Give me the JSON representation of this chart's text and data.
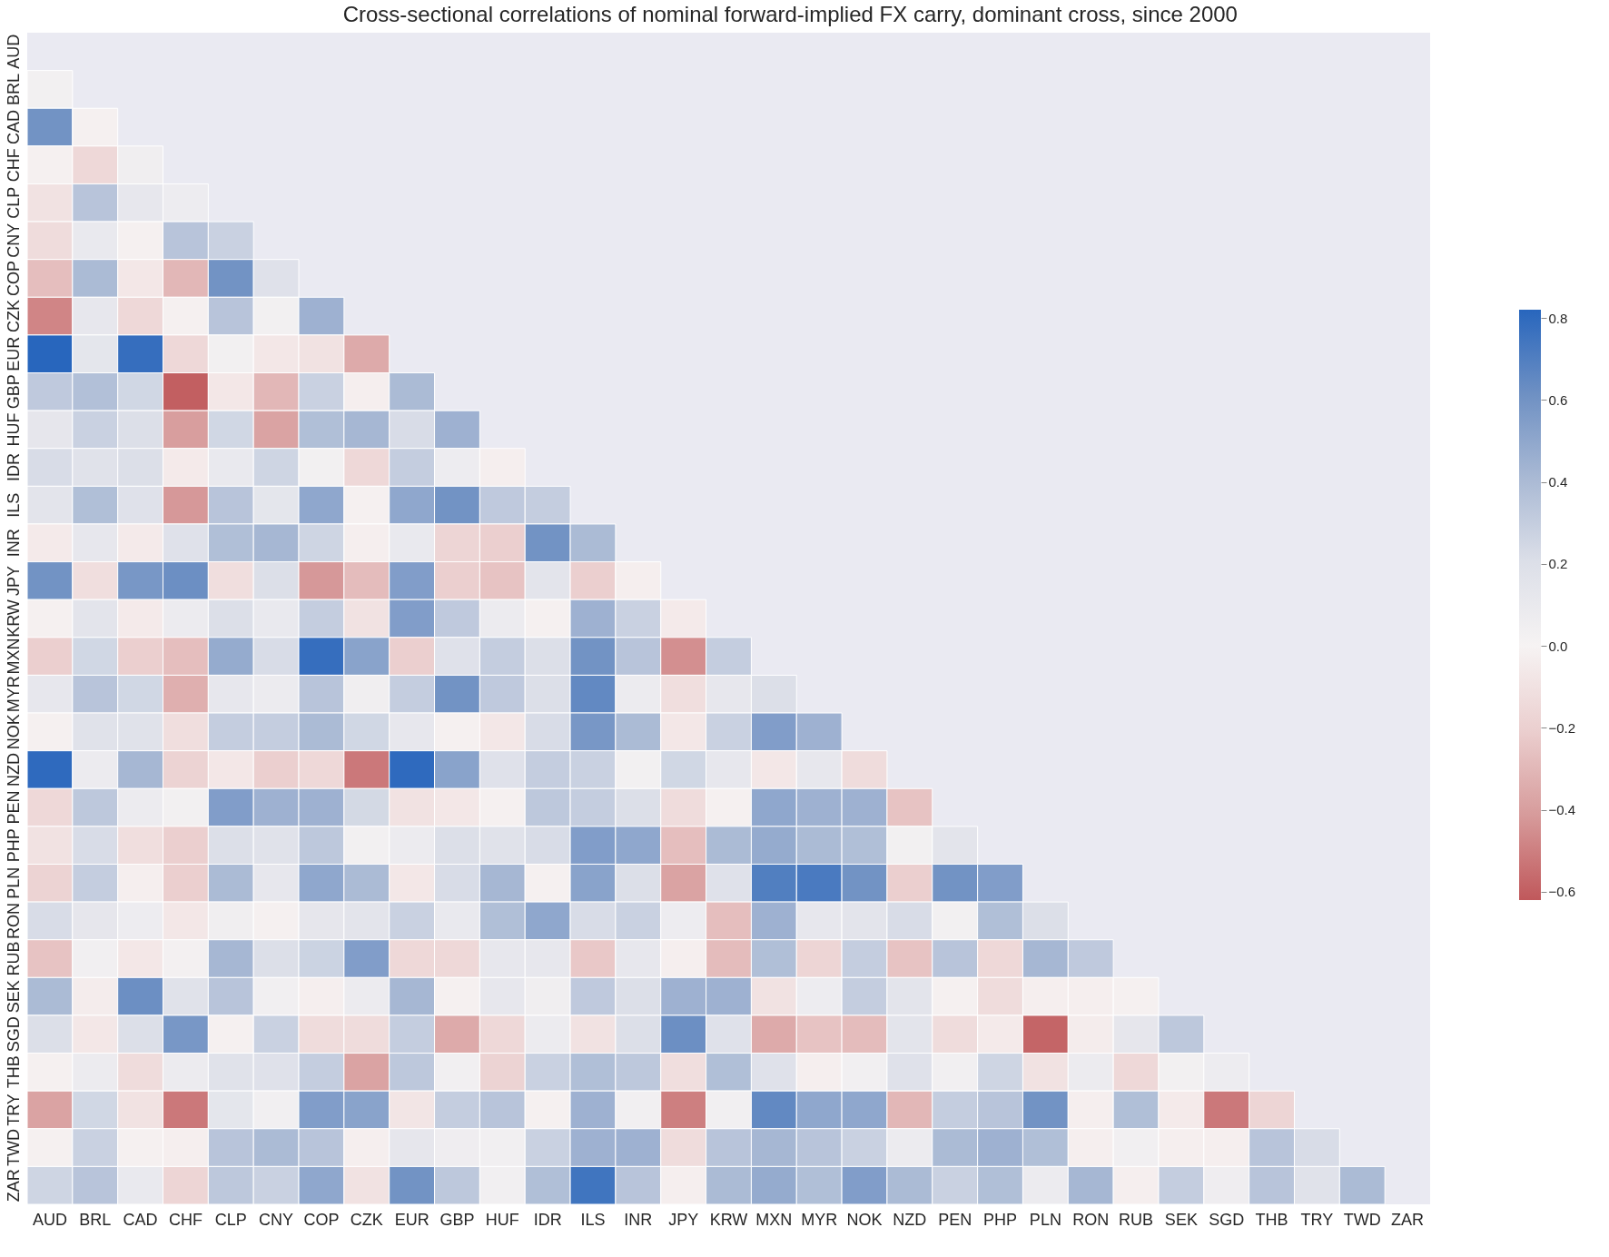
{
  "chart_data": {
    "type": "heatmap",
    "title": "Cross-sectional correlations of nominal forward-implied FX carry, dominant cross, since 2000",
    "categories": [
      "AUD",
      "BRL",
      "CAD",
      "CHF",
      "CLP",
      "CNY",
      "COP",
      "CZK",
      "EUR",
      "GBP",
      "HUF",
      "IDR",
      "ILS",
      "INR",
      "JPY",
      "KRW",
      "MXN",
      "MYR",
      "NOK",
      "NZD",
      "PEN",
      "PHP",
      "PLN",
      "RON",
      "RUB",
      "SEK",
      "SGD",
      "THB",
      "TRY",
      "TWD",
      "ZAR"
    ],
    "y_categories": [
      "AUD",
      "BRL",
      "CAD",
      "CHF",
      "CLP",
      "CNY",
      "COP",
      "CZK",
      "EUR",
      "GBP",
      "HUF",
      "IDR",
      "ILS",
      "INR",
      "JPY",
      "KRW",
      "MXN",
      "MYR",
      "NOK",
      "NZD",
      "PEN",
      "PHP",
      "PLN",
      "RON",
      "RUB",
      "SEK",
      "SGD",
      "THB",
      "TRY",
      "TWD",
      "ZAR"
    ],
    "clim": [
      -0.62,
      0.82
    ],
    "cticks": [
      -0.6,
      -0.4,
      -0.2,
      {
        "value": 0,
        "label": "0.0"
      },
      0.2,
      0.4,
      0.6,
      0.8
    ],
    "cells": [
      [
        null,
        null,
        null,
        null,
        null,
        null,
        null,
        null,
        null,
        null,
        null,
        null,
        null,
        null,
        null,
        null,
        null,
        null,
        null,
        null,
        null,
        null,
        null,
        null,
        null,
        null,
        null,
        null,
        null,
        null,
        null
      ],
      [
        0.03,
        null,
        null,
        null,
        null,
        null,
        null,
        null,
        null,
        null,
        null,
        null,
        null,
        null,
        null,
        null,
        null,
        null,
        null,
        null,
        null,
        null,
        null,
        null,
        null,
        null,
        null,
        null,
        null,
        null,
        null
      ],
      [
        0.6,
        -0.02,
        null,
        null,
        null,
        null,
        null,
        null,
        null,
        null,
        null,
        null,
        null,
        null,
        null,
        null,
        null,
        null,
        null,
        null,
        null,
        null,
        null,
        null,
        null,
        null,
        null,
        null,
        null,
        null,
        null
      ],
      [
        -0.02,
        -0.15,
        0.05,
        null,
        null,
        null,
        null,
        null,
        null,
        null,
        null,
        null,
        null,
        null,
        null,
        null,
        null,
        null,
        null,
        null,
        null,
        null,
        null,
        null,
        null,
        null,
        null,
        null,
        null,
        null,
        null
      ],
      [
        -0.1,
        0.35,
        0.12,
        0.07,
        null,
        null,
        null,
        null,
        null,
        null,
        null,
        null,
        null,
        null,
        null,
        null,
        null,
        null,
        null,
        null,
        null,
        null,
        null,
        null,
        null,
        null,
        null,
        null,
        null,
        null,
        null
      ],
      [
        -0.13,
        0.1,
        -0.02,
        0.35,
        0.28,
        null,
        null,
        null,
        null,
        null,
        null,
        null,
        null,
        null,
        null,
        null,
        null,
        null,
        null,
        null,
        null,
        null,
        null,
        null,
        null,
        null,
        null,
        null,
        null,
        null,
        null
      ],
      [
        -0.27,
        0.4,
        -0.07,
        -0.3,
        0.6,
        0.18,
        null,
        null,
        null,
        null,
        null,
        null,
        null,
        null,
        null,
        null,
        null,
        null,
        null,
        null,
        null,
        null,
        null,
        null,
        null,
        null,
        null,
        null,
        null,
        null,
        null
      ],
      [
        -0.48,
        0.12,
        -0.15,
        -0.02,
        0.35,
        0.03,
        0.45,
        null,
        null,
        null,
        null,
        null,
        null,
        null,
        null,
        null,
        null,
        null,
        null,
        null,
        null,
        null,
        null,
        null,
        null,
        null,
        null,
        null,
        null,
        null,
        null
      ],
      [
        0.82,
        0.14,
        0.78,
        -0.15,
        0.03,
        -0.07,
        -0.1,
        -0.35,
        null,
        null,
        null,
        null,
        null,
        null,
        null,
        null,
        null,
        null,
        null,
        null,
        null,
        null,
        null,
        null,
        null,
        null,
        null,
        null,
        null,
        null,
        null
      ],
      [
        0.32,
        0.37,
        0.25,
        -0.6,
        -0.07,
        -0.3,
        0.28,
        -0.03,
        0.4,
        null,
        null,
        null,
        null,
        null,
        null,
        null,
        null,
        null,
        null,
        null,
        null,
        null,
        null,
        null,
        null,
        null,
        null,
        null,
        null,
        null,
        null
      ],
      [
        0.13,
        0.28,
        0.2,
        -0.4,
        0.25,
        -0.38,
        0.38,
        0.42,
        0.22,
        0.45,
        null,
        null,
        null,
        null,
        null,
        null,
        null,
        null,
        null,
        null,
        null,
        null,
        null,
        null,
        null,
        null,
        null,
        null,
        null,
        null,
        null
      ],
      [
        0.22,
        0.17,
        0.2,
        -0.05,
        0.1,
        0.26,
        0.03,
        -0.15,
        0.3,
        0.07,
        -0.03,
        null,
        null,
        null,
        null,
        null,
        null,
        null,
        null,
        null,
        null,
        null,
        null,
        null,
        null,
        null,
        null,
        null,
        null,
        null,
        null
      ],
      [
        0.15,
        0.38,
        0.18,
        -0.42,
        0.35,
        0.14,
        0.5,
        -0.02,
        0.5,
        0.6,
        0.32,
        0.3,
        null,
        null,
        null,
        null,
        null,
        null,
        null,
        null,
        null,
        null,
        null,
        null,
        null,
        null,
        null,
        null,
        null,
        null,
        null
      ],
      [
        -0.05,
        0.12,
        -0.05,
        0.18,
        0.38,
        0.42,
        0.26,
        -0.03,
        0.1,
        -0.17,
        -0.2,
        0.6,
        0.4,
        null,
        null,
        null,
        null,
        null,
        null,
        null,
        null,
        null,
        null,
        null,
        null,
        null,
        null,
        null,
        null,
        null,
        null
      ],
      [
        0.6,
        -0.12,
        0.58,
        0.62,
        -0.12,
        0.2,
        -0.42,
        -0.28,
        0.55,
        -0.2,
        -0.25,
        0.15,
        -0.2,
        -0.03,
        null,
        null,
        null,
        null,
        null,
        null,
        null,
        null,
        null,
        null,
        null,
        null,
        null,
        null,
        null,
        null,
        null
      ],
      [
        -0.02,
        0.15,
        -0.05,
        0.08,
        0.2,
        0.1,
        0.3,
        -0.1,
        0.55,
        0.32,
        0.08,
        -0.02,
        0.45,
        0.28,
        -0.05,
        null,
        null,
        null,
        null,
        null,
        null,
        null,
        null,
        null,
        null,
        null,
        null,
        null,
        null,
        null,
        null
      ],
      [
        -0.2,
        0.25,
        -0.2,
        -0.27,
        0.48,
        0.22,
        0.78,
        0.52,
        -0.2,
        0.18,
        0.3,
        0.2,
        0.6,
        0.35,
        -0.45,
        0.3,
        null,
        null,
        null,
        null,
        null,
        null,
        null,
        null,
        null,
        null,
        null,
        null,
        null,
        null,
        null
      ],
      [
        0.12,
        0.35,
        0.25,
        -0.33,
        0.12,
        0.08,
        0.35,
        0.05,
        0.3,
        0.6,
        0.32,
        0.2,
        0.65,
        0.08,
        -0.12,
        0.12,
        0.2,
        null,
        null,
        null,
        null,
        null,
        null,
        null,
        null,
        null,
        null,
        null,
        null,
        null,
        null
      ],
      [
        -0.02,
        0.17,
        0.17,
        -0.12,
        0.3,
        0.3,
        0.4,
        0.25,
        0.12,
        -0.02,
        -0.07,
        0.22,
        0.58,
        0.4,
        -0.07,
        0.28,
        0.55,
        0.45,
        null,
        null,
        null,
        null,
        null,
        null,
        null,
        null,
        null,
        null,
        null,
        null,
        null
      ],
      [
        0.8,
        0.08,
        0.42,
        -0.18,
        -0.07,
        -0.2,
        -0.15,
        -0.52,
        0.8,
        0.52,
        0.18,
        0.3,
        0.28,
        0.03,
        0.25,
        0.12,
        -0.07,
        0.12,
        -0.13,
        null,
        null,
        null,
        null,
        null,
        null,
        null,
        null,
        null,
        null,
        null,
        null
      ],
      [
        -0.15,
        0.33,
        0.08,
        0.03,
        0.55,
        0.45,
        0.45,
        0.24,
        -0.1,
        -0.07,
        -0.02,
        0.33,
        0.3,
        0.2,
        -0.13,
        -0.02,
        0.5,
        0.45,
        0.45,
        -0.25,
        null,
        null,
        null,
        null,
        null,
        null,
        null,
        null,
        null,
        null,
        null
      ],
      [
        -0.1,
        0.22,
        -0.12,
        -0.2,
        0.2,
        0.17,
        0.33,
        0.03,
        0.08,
        0.2,
        0.17,
        0.22,
        0.55,
        0.5,
        -0.27,
        0.4,
        0.48,
        0.4,
        0.38,
        0.03,
        0.15,
        null,
        null,
        null,
        null,
        null,
        null,
        null,
        null,
        null,
        null
      ],
      [
        -0.18,
        0.3,
        -0.03,
        -0.2,
        0.4,
        0.12,
        0.5,
        0.4,
        -0.07,
        0.22,
        0.42,
        -0.02,
        0.52,
        0.2,
        -0.38,
        0.18,
        0.7,
        0.72,
        0.6,
        -0.2,
        0.6,
        0.55,
        null,
        null,
        null,
        null,
        null,
        null,
        null,
        null,
        null
      ],
      [
        0.22,
        0.13,
        0.07,
        -0.07,
        0.05,
        -0.02,
        0.13,
        0.15,
        0.28,
        0.1,
        0.38,
        0.5,
        0.22,
        0.28,
        0.07,
        -0.27,
        0.45,
        0.12,
        0.15,
        0.22,
        0.03,
        0.38,
        0.2,
        null,
        null,
        null,
        null,
        null,
        null,
        null,
        null
      ],
      [
        -0.25,
        0.04,
        -0.07,
        0.02,
        0.42,
        0.2,
        0.27,
        0.55,
        -0.15,
        -0.15,
        0.12,
        0.12,
        -0.23,
        0.12,
        -0.03,
        -0.28,
        0.38,
        -0.17,
        0.3,
        -0.25,
        0.35,
        -0.15,
        0.42,
        0.32,
        null,
        null,
        null,
        null,
        null,
        null,
        null
      ],
      [
        0.4,
        -0.04,
        0.62,
        0.17,
        0.35,
        0.04,
        -0.03,
        0.08,
        0.42,
        -0.02,
        0.12,
        0.05,
        0.32,
        0.2,
        0.45,
        0.45,
        -0.1,
        0.07,
        0.3,
        0.15,
        -0.02,
        -0.13,
        -0.03,
        -0.03,
        -0.02,
        null,
        null,
        null,
        null,
        null,
        null
      ],
      [
        0.2,
        -0.07,
        0.2,
        0.58,
        -0.02,
        0.28,
        -0.13,
        -0.13,
        0.3,
        -0.35,
        -0.15,
        0.08,
        -0.1,
        0.2,
        0.62,
        0.18,
        -0.35,
        -0.25,
        -0.28,
        0.15,
        -0.13,
        -0.05,
        -0.58,
        -0.04,
        0.13,
        0.33,
        null,
        null,
        null,
        null,
        null
      ],
      [
        -0.02,
        0.08,
        -0.13,
        0.08,
        0.17,
        0.18,
        0.3,
        -0.38,
        0.33,
        0.04,
        -0.18,
        0.28,
        0.38,
        0.33,
        -0.12,
        0.38,
        0.18,
        -0.03,
        0.04,
        0.18,
        0.04,
        0.26,
        -0.1,
        0.08,
        -0.15,
        0.03,
        0.07,
        null,
        null,
        null,
        null
      ],
      [
        -0.38,
        0.25,
        -0.1,
        -0.52,
        0.14,
        0.04,
        0.55,
        0.52,
        -0.08,
        0.3,
        0.35,
        -0.02,
        0.45,
        0.04,
        -0.5,
        0.04,
        0.65,
        0.5,
        0.5,
        -0.3,
        0.3,
        0.35,
        0.6,
        -0.03,
        0.38,
        -0.05,
        -0.52,
        -0.17,
        null,
        null,
        null
      ],
      [
        -0.02,
        0.28,
        -0.02,
        -0.03,
        0.35,
        0.4,
        0.35,
        -0.03,
        0.13,
        0.06,
        0.04,
        0.28,
        0.45,
        0.45,
        -0.13,
        0.35,
        0.42,
        0.35,
        0.28,
        0.08,
        0.4,
        0.45,
        0.38,
        -0.03,
        0.04,
        -0.03,
        -0.03,
        0.35,
        0.22,
        null,
        null
      ],
      [
        0.26,
        0.35,
        0.1,
        -0.17,
        0.33,
        0.28,
        0.5,
        -0.1,
        0.6,
        0.33,
        0.04,
        0.38,
        0.75,
        0.35,
        -0.03,
        0.4,
        0.48,
        0.38,
        0.55,
        0.4,
        0.28,
        0.38,
        0.08,
        0.42,
        -0.03,
        0.3,
        0.06,
        0.35,
        0.17,
        0.4,
        null
      ]
    ]
  }
}
